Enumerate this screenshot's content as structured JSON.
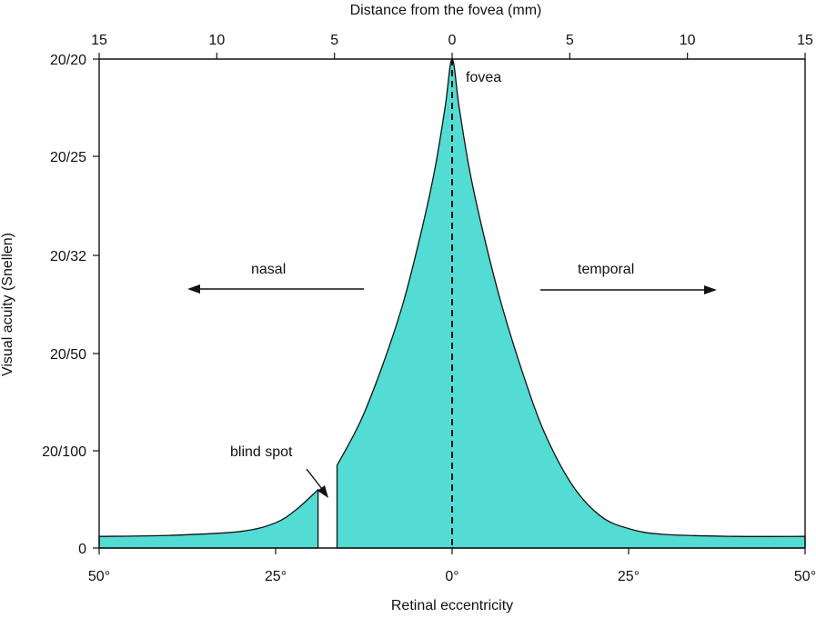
{
  "chart_data": {
    "type": "area",
    "title": "",
    "xlabel": "Retinal eccentricity",
    "x2label": "Distance from the fovea (mm)",
    "ylabel": "Visual acuity (Snellen)",
    "xlim": [
      -50,
      50
    ],
    "x_ticks": [
      {
        "value": -50,
        "label": "50°"
      },
      {
        "value": -25,
        "label": "25°"
      },
      {
        "value": 0,
        "label": "0°"
      },
      {
        "value": 25,
        "label": "25°"
      },
      {
        "value": 50,
        "label": "50°"
      }
    ],
    "x2_ticks": [
      {
        "value": -15,
        "label": "15"
      },
      {
        "value": -10,
        "label": "10"
      },
      {
        "value": -5,
        "label": "5"
      },
      {
        "value": 0,
        "label": "0"
      },
      {
        "value": 5,
        "label": "5"
      },
      {
        "value": 10,
        "label": "10"
      },
      {
        "value": 15,
        "label": "15"
      }
    ],
    "y_ticks": [
      "0",
      "20/100",
      "20/50",
      "20/32",
      "20/25",
      "20/20"
    ],
    "series": [
      {
        "fill_color": "#52dcd3",
        "points": [
          {
            "x": -50,
            "y": 0.12
          },
          {
            "x": -40,
            "y": 0.13
          },
          {
            "x": -30,
            "y": 0.17
          },
          {
            "x": -25,
            "y": 0.26
          },
          {
            "x": -22,
            "y": 0.4
          },
          {
            "x": -19,
            "y": 0.6
          },
          {
            "x": -16.3,
            "y": 0.85
          },
          {
            "x": -13,
            "y": 1.3
          },
          {
            "x": -10,
            "y": 1.85
          },
          {
            "x": -7,
            "y": 2.5
          },
          {
            "x": -4.5,
            "y": 3.2
          },
          {
            "x": -2.5,
            "y": 3.85
          },
          {
            "x": -1,
            "y": 4.5
          },
          {
            "x": 0,
            "y": 5
          },
          {
            "x": 1,
            "y": 4.5
          },
          {
            "x": 2.5,
            "y": 3.85
          },
          {
            "x": 4.5,
            "y": 3.2
          },
          {
            "x": 7,
            "y": 2.5
          },
          {
            "x": 10,
            "y": 1.8
          },
          {
            "x": 13,
            "y": 1.2
          },
          {
            "x": 17,
            "y": 0.65
          },
          {
            "x": 21,
            "y": 0.33
          },
          {
            "x": 25,
            "y": 0.2
          },
          {
            "x": 30,
            "y": 0.14
          },
          {
            "x": 40,
            "y": 0.12
          },
          {
            "x": 50,
            "y": 0.12
          }
        ],
        "gap": {
          "from": -19,
          "to": -16.3
        }
      }
    ],
    "annotations": [
      {
        "name": "fovea",
        "text": "fovea",
        "x": 0,
        "y": 5
      },
      {
        "name": "blind-spot",
        "text": "blind spot",
        "x": -17.7,
        "y": 0.9
      },
      {
        "name": "nasal",
        "text": "nasal",
        "direction": "left"
      },
      {
        "name": "temporal",
        "text": "temporal",
        "direction": "right"
      }
    ],
    "grid": false,
    "legend": "none"
  }
}
